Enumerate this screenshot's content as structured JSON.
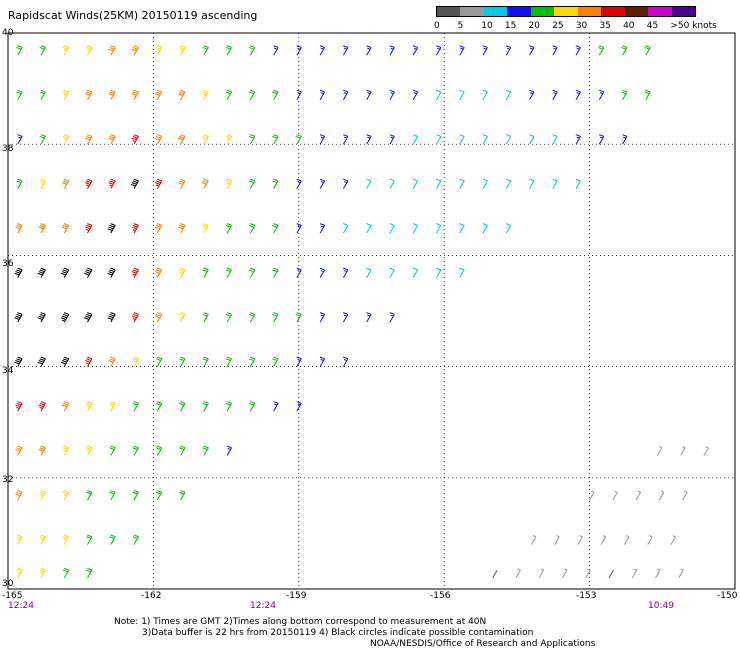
{
  "title": "Rapidscat Winds(25KM) 20150119 ascending",
  "colorbar": {
    "labels": [
      "0",
      "5",
      "10",
      "15",
      "20",
      "25",
      "30",
      "35",
      "40",
      "45",
      ">50 knots"
    ],
    "colors": [
      "#555555",
      "#999999",
      "#00c8e8",
      "#1010ff",
      "#00c000",
      "#ffd800",
      "#ff8000",
      "#e00000",
      "#602000",
      "#d000d0",
      "#500090"
    ]
  },
  "map": {
    "lat_labels": [
      "40",
      "38",
      "36",
      "34",
      "32",
      "30"
    ],
    "lon_labels": [
      "-165",
      "-162",
      "-159",
      "-156",
      "-153",
      "-150"
    ],
    "time_labels": [
      "12:24",
      "12:24",
      "10:49"
    ]
  },
  "notes": {
    "line1": "Note:  1) Times are GMT  2)Times along bottom correspond to measurement at 40N",
    "line2": "3)Data buffer is 22 hrs from 20150119  4) Black circles indicate possible contamination",
    "line3": "NOAA/NESDIS/Office of Research and Applications"
  },
  "wind_field": {
    "rows": [
      {
        "lat": 39.6,
        "lon_start": -164.8,
        "speeds": [
          22,
          24,
          26,
          28,
          30,
          30,
          28,
          26,
          24,
          22,
          20,
          19,
          18,
          18,
          17,
          17,
          16,
          16,
          15,
          15,
          15,
          15,
          16,
          17,
          19,
          21,
          23,
          24
        ]
      },
      {
        "lat": 38.8,
        "lon_start": -164.8,
        "speeds": [
          20,
          22,
          26,
          30,
          32,
          34,
          32,
          30,
          26,
          24,
          22,
          20,
          19,
          18,
          18,
          17,
          16,
          15,
          14,
          14,
          14,
          14,
          15,
          15,
          16,
          18,
          20,
          22
        ]
      },
      {
        "lat": 38.0,
        "lon_start": -164.8,
        "speeds": [
          18,
          22,
          28,
          32,
          34,
          36,
          34,
          32,
          28,
          26,
          22,
          21,
          20,
          18,
          18,
          17,
          15,
          14,
          13,
          13,
          13,
          13,
          14,
          14,
          15,
          16,
          17
        ]
      },
      {
        "lat": 37.2,
        "lon_start": -164.8,
        "speeds": [
          24,
          28,
          32,
          36,
          38,
          40,
          38,
          34,
          30,
          26,
          22,
          20,
          19,
          17,
          16,
          14,
          13,
          12,
          12,
          12,
          12,
          13,
          13,
          14,
          14
        ]
      },
      {
        "lat": 36.4,
        "lon_start": -164.8,
        "speeds": [
          30,
          32,
          34,
          38,
          40,
          38,
          34,
          30,
          26,
          24,
          22,
          20,
          18,
          16,
          14,
          13,
          12,
          12,
          12,
          13,
          13,
          13
        ]
      },
      {
        "lat": 35.6,
        "lon_start": -164.8,
        "speeds": [
          40,
          42,
          44,
          42,
          40,
          36,
          32,
          28,
          24,
          22,
          20,
          20,
          19,
          17,
          15,
          14,
          13,
          12,
          13,
          13
        ]
      },
      {
        "lat": 34.8,
        "lon_start": -164.8,
        "speeds": [
          42,
          44,
          46,
          44,
          42,
          36,
          30,
          26,
          22,
          22,
          21,
          20,
          20,
          18,
          17,
          16,
          15
        ]
      },
      {
        "lat": 34.0,
        "lon_start": -164.8,
        "speeds": [
          40,
          42,
          40,
          36,
          32,
          28,
          24,
          22,
          22,
          21,
          20,
          20,
          19,
          17,
          16
        ]
      },
      {
        "lat": 33.2,
        "lon_start": -164.8,
        "speeds": [
          38,
          36,
          32,
          28,
          26,
          24,
          22,
          22,
          21,
          20,
          20,
          19,
          18
        ]
      },
      {
        "lat": 32.4,
        "lon_start": -164.8,
        "speeds": [
          34,
          32,
          28,
          26,
          24,
          22,
          22,
          21,
          20,
          19
        ]
      },
      {
        "lat": 31.6,
        "lon_start": -164.8,
        "speeds": [
          30,
          28,
          26,
          24,
          23,
          22,
          22,
          21
        ]
      },
      {
        "lat": 30.8,
        "lon_start": -164.8,
        "speeds": [
          28,
          26,
          25,
          24,
          23,
          22
        ]
      },
      {
        "lat": 30.2,
        "lon_start": -164.8,
        "speeds": [
          26,
          25,
          24,
          23
        ]
      },
      {
        "lat": 32.4,
        "lon_start": -151.6,
        "speeds": [
          8,
          8,
          9
        ]
      },
      {
        "lat": 31.6,
        "lon_start": -153.0,
        "speeds": [
          6,
          7,
          8,
          8,
          9
        ]
      },
      {
        "lat": 30.8,
        "lon_start": -154.2,
        "speeds": [
          5,
          6,
          7,
          8,
          8,
          6,
          7
        ]
      },
      {
        "lat": 30.2,
        "lon_start": -155.0,
        "speeds": [
          4,
          5,
          6,
          6,
          5,
          4,
          6,
          7,
          8
        ]
      }
    ],
    "spacing_deg": 0.48
  }
}
